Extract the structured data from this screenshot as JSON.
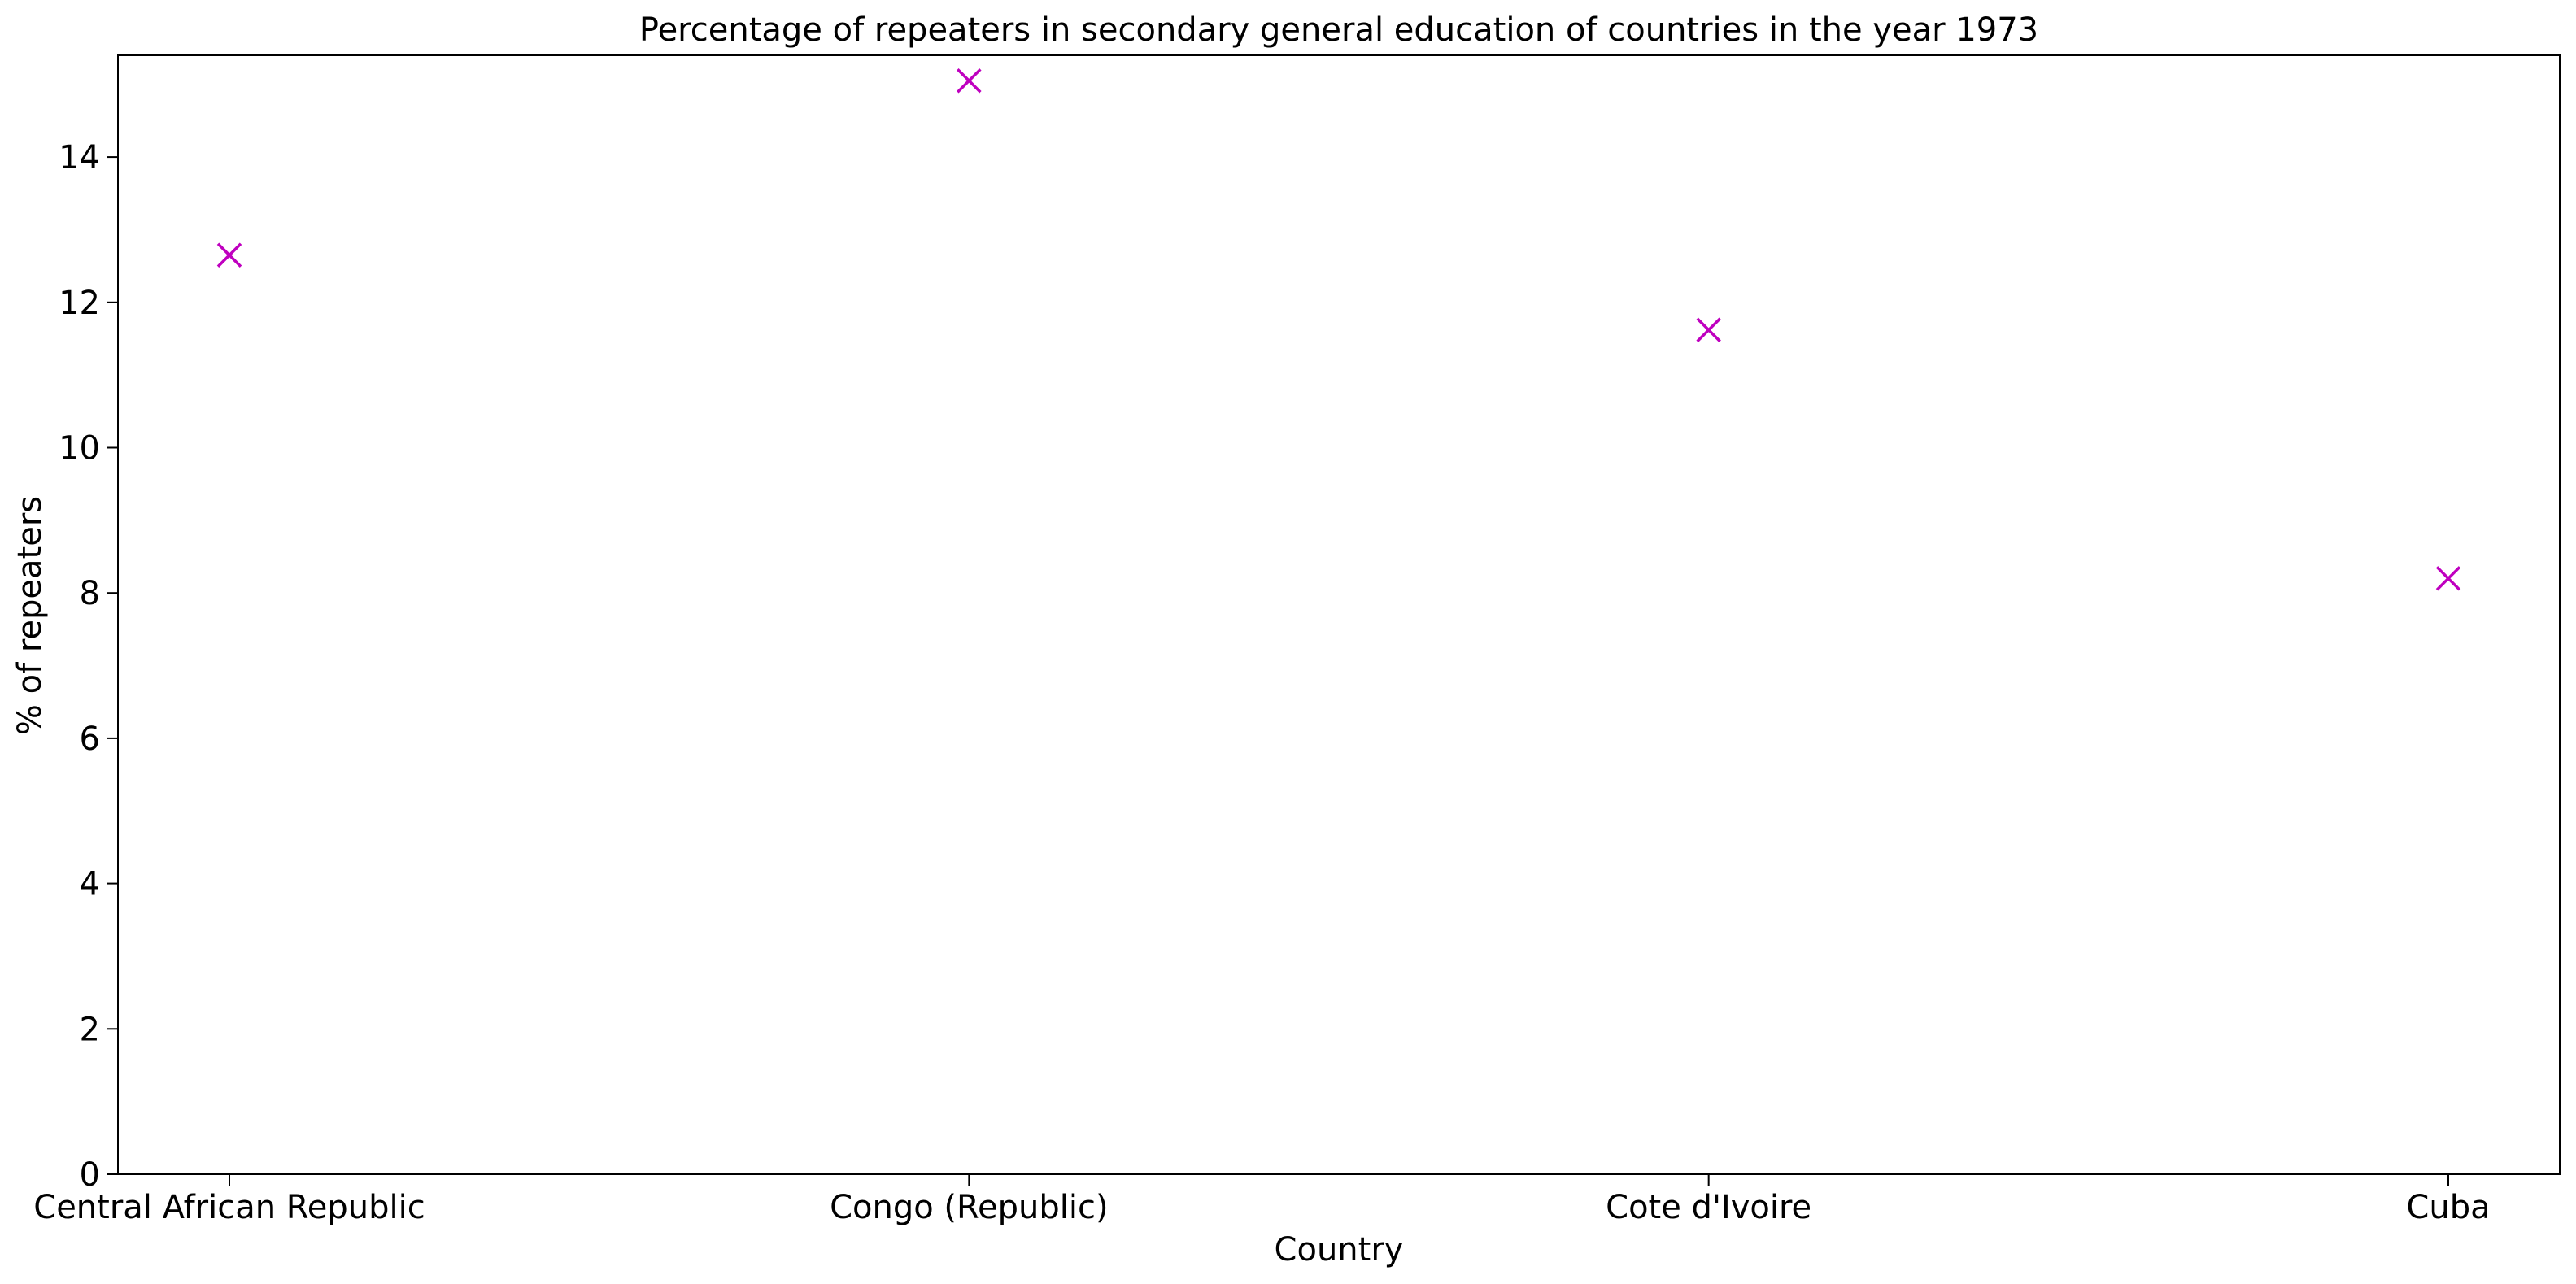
{
  "chart_data": {
    "type": "scatter",
    "title": "Percentage of repeaters in secondary general education of countries in the year 1973",
    "xlabel": "Country",
    "ylabel": "% of repeaters",
    "categories": [
      "Central African Republic",
      "Congo (Republic)",
      "Cote d'Ivoire",
      "Cuba"
    ],
    "series": [
      {
        "values": [
          12.65,
          15.05,
          11.62,
          8.2
        ]
      }
    ],
    "ylim": [
      0,
      15.4
    ],
    "yticks": [
      0,
      2,
      4,
      6,
      8,
      10,
      12,
      14
    ],
    "marker": "x",
    "marker_color": "#bf00bf",
    "grid": false,
    "legend": "none"
  }
}
